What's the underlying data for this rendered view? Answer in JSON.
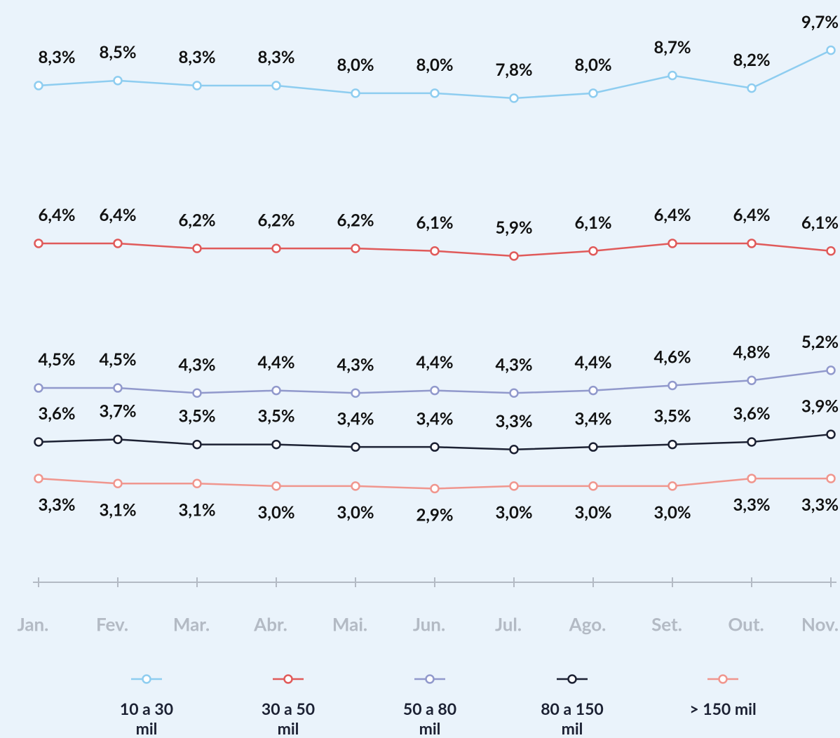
{
  "chart_data": {
    "type": "line",
    "categories": [
      "Jan.",
      "Fev.",
      "Mar.",
      "Abr.",
      "Mai.",
      "Jun.",
      "Jul.",
      "Ago.",
      "Set.",
      "Out.",
      "Nov."
    ],
    "series": [
      {
        "name": "10 a 30 mil",
        "color": "#8ecdf0",
        "values": [
          8.3,
          8.5,
          8.3,
          8.3,
          8.0,
          8.0,
          7.8,
          8.0,
          8.7,
          8.2,
          9.7
        ],
        "value_labels": [
          "8,3%",
          "8,5%",
          "8,3%",
          "8,3%",
          "8,0%",
          "8,0%",
          "7,8%",
          "8,0%",
          "8,7%",
          "8,2%",
          "9,7%"
        ]
      },
      {
        "name": "30 a 50 mil",
        "color": "#e05a5a",
        "values": [
          6.4,
          6.4,
          6.2,
          6.2,
          6.2,
          6.1,
          5.9,
          6.1,
          6.4,
          6.4,
          6.1
        ],
        "value_labels": [
          "6,4%",
          "6,4%",
          "6,2%",
          "6,2%",
          "6,2%",
          "6,1%",
          "5,9%",
          "6,1%",
          "6,4%",
          "6,4%",
          "6,1%"
        ]
      },
      {
        "name": "50 a 80 mil",
        "color": "#9199cc",
        "values": [
          4.5,
          4.5,
          4.3,
          4.4,
          4.3,
          4.4,
          4.3,
          4.4,
          4.6,
          4.8,
          5.2
        ],
        "value_labels": [
          "4,5%",
          "4,5%",
          "4,3%",
          "4,4%",
          "4,3%",
          "4,4%",
          "4,3%",
          "4,4%",
          "4,6%",
          "4,8%",
          "5,2%"
        ]
      },
      {
        "name": "80 a 150 mil",
        "color": "#1c2133",
        "values": [
          3.6,
          3.7,
          3.5,
          3.5,
          3.4,
          3.4,
          3.3,
          3.4,
          3.5,
          3.6,
          3.9
        ],
        "value_labels": [
          "3,6%",
          "3,7%",
          "3,5%",
          "3,5%",
          "3,4%",
          "3,4%",
          "3,3%",
          "3,4%",
          "3,5%",
          "3,6%",
          "3,9%"
        ]
      },
      {
        "name": "> 150 mil",
        "color": "#f0968e",
        "values": [
          3.3,
          3.1,
          3.1,
          3.0,
          3.0,
          2.9,
          3.0,
          3.0,
          3.0,
          3.3,
          3.3
        ],
        "value_labels": [
          "3,3%",
          "3,1%",
          "3,1%",
          "3,0%",
          "3,0%",
          "2,9%",
          "3,0%",
          "3,0%",
          "3,0%",
          "3,3%",
          "3,3%"
        ]
      }
    ]
  }
}
